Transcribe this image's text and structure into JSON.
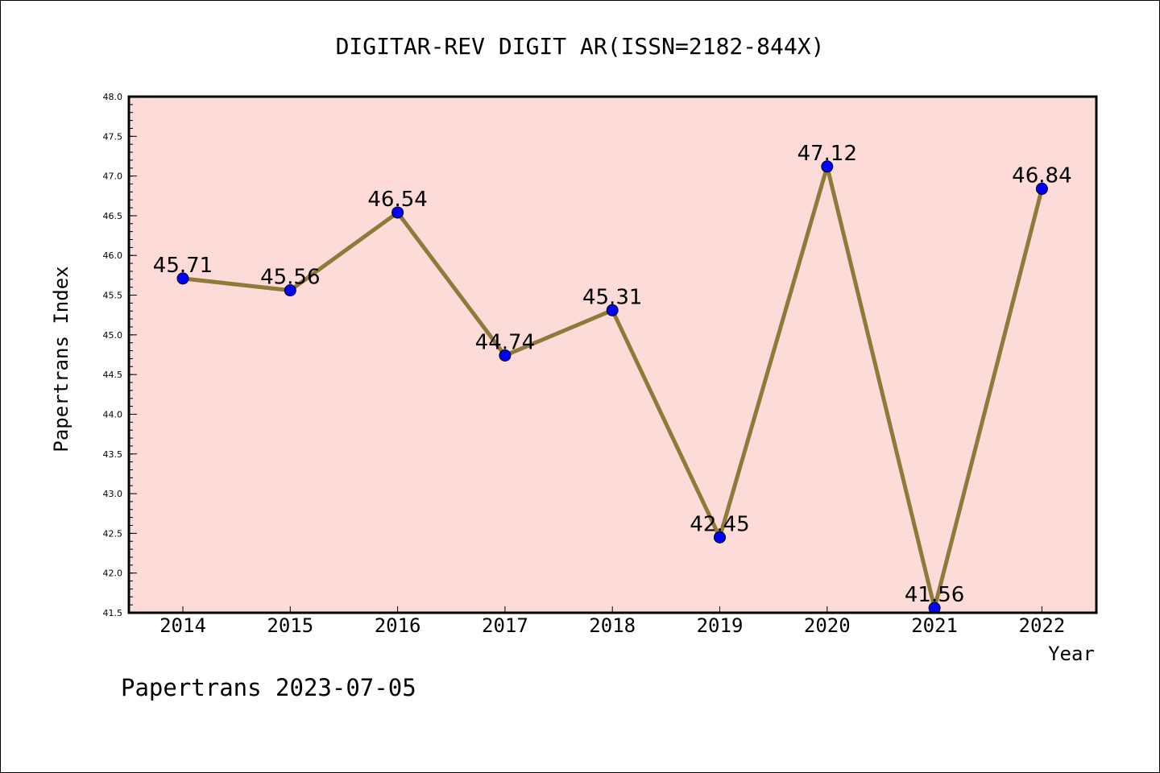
{
  "chart_data": {
    "type": "line",
    "title": "DIGITAR-REV DIGIT AR(ISSN=2182-844X)",
    "xlabel": "Year",
    "ylabel": "Papertrans Index",
    "categories": [
      "2014",
      "2015",
      "2016",
      "2017",
      "2018",
      "2019",
      "2020",
      "2021",
      "2022"
    ],
    "series": [
      {
        "values": [
          45.71,
          45.56,
          46.54,
          44.74,
          45.31,
          42.45,
          47.12,
          41.56,
          46.84
        ],
        "labels": [
          "45.71",
          "45.56",
          "46.54",
          "44.74",
          "45.31",
          "42.45",
          "47.12",
          "41.56",
          "46.84"
        ]
      }
    ],
    "ylim": [
      41.5,
      48.0
    ],
    "yticks": [
      "41.5",
      "42.0",
      "42.5",
      "43.0",
      "43.5",
      "44.0",
      "44.5",
      "45.0",
      "45.5",
      "46.0",
      "46.5",
      "47.0",
      "47.5",
      "48.0"
    ],
    "grid": false,
    "colors": {
      "plot_background": "#fddbd8",
      "line": "#8e7b3a",
      "marker": "#0000ff"
    }
  },
  "footer": {
    "text": "Papertrans 2023-07-05"
  }
}
